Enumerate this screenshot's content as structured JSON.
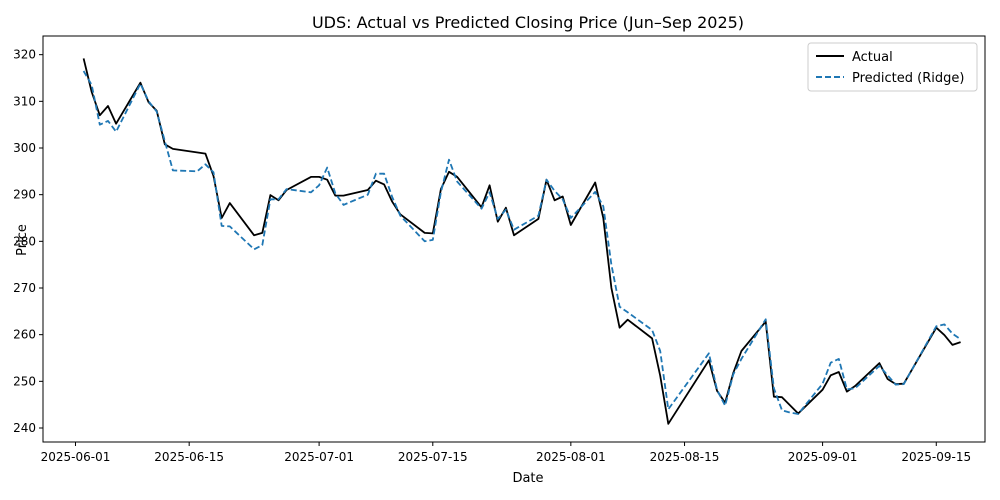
{
  "chart_data": {
    "type": "line",
    "title": "UDS: Actual vs Predicted Closing Price (Jun–Sep 2025)",
    "xlabel": "Date",
    "ylabel": "Price",
    "xlim": [
      "2025-05-28",
      "2025-09-21"
    ],
    "ylim": [
      237,
      324
    ],
    "xticks": [
      "2025-06-01",
      "2025-06-15",
      "2025-07-01",
      "2025-07-15",
      "2025-08-01",
      "2025-08-15",
      "2025-09-01",
      "2025-09-15"
    ],
    "yticks": [
      240,
      250,
      260,
      270,
      280,
      290,
      300,
      310,
      320
    ],
    "legend": {
      "position": "top-right",
      "entries": [
        "Actual",
        "Predicted (Ridge)"
      ]
    },
    "grid": false,
    "series": [
      {
        "name": "Actual",
        "color": "#000000",
        "style": "solid",
        "points": [
          [
            "2025-06-02",
            319.2
          ],
          [
            "2025-06-03",
            312.0
          ],
          [
            "2025-06-04",
            307.0
          ],
          [
            "2025-06-05",
            309.0
          ],
          [
            "2025-06-06",
            305.2
          ],
          [
            "2025-06-09",
            314.0
          ],
          [
            "2025-06-10",
            309.8
          ],
          [
            "2025-06-11",
            308.0
          ],
          [
            "2025-06-12",
            300.8
          ],
          [
            "2025-06-13",
            299.8
          ],
          [
            "2025-06-17",
            298.8
          ],
          [
            "2025-06-18",
            294.0
          ],
          [
            "2025-06-19",
            285.0
          ],
          [
            "2025-06-20",
            288.2
          ],
          [
            "2025-06-23",
            281.3
          ],
          [
            "2025-06-24",
            281.8
          ],
          [
            "2025-06-25",
            289.9
          ],
          [
            "2025-06-26",
            288.8
          ],
          [
            "2025-06-27",
            291.0
          ],
          [
            "2025-06-30",
            293.8
          ],
          [
            "2025-07-01",
            293.8
          ],
          [
            "2025-07-02",
            293.2
          ],
          [
            "2025-07-03",
            289.8
          ],
          [
            "2025-07-04",
            289.8
          ],
          [
            "2025-07-07",
            291.0
          ],
          [
            "2025-07-08",
            293.0
          ],
          [
            "2025-07-09",
            292.2
          ],
          [
            "2025-07-10",
            288.5
          ],
          [
            "2025-07-11",
            285.8
          ],
          [
            "2025-07-14",
            281.8
          ],
          [
            "2025-07-15",
            281.7
          ],
          [
            "2025-07-16",
            291.2
          ],
          [
            "2025-07-17",
            294.9
          ],
          [
            "2025-07-18",
            293.8
          ],
          [
            "2025-07-21",
            287.3
          ],
          [
            "2025-07-22",
            292.0
          ],
          [
            "2025-07-23",
            284.2
          ],
          [
            "2025-07-24",
            287.2
          ],
          [
            "2025-07-25",
            281.3
          ],
          [
            "2025-07-28",
            284.8
          ],
          [
            "2025-07-29",
            293.2
          ],
          [
            "2025-07-30",
            288.8
          ],
          [
            "2025-07-31",
            289.6
          ],
          [
            "2025-08-01",
            283.5
          ],
          [
            "2025-08-04",
            292.6
          ],
          [
            "2025-08-05",
            285.0
          ],
          [
            "2025-08-06",
            270.0
          ],
          [
            "2025-08-07",
            261.5
          ],
          [
            "2025-08-08",
            263.2
          ],
          [
            "2025-08-11",
            259.2
          ],
          [
            "2025-08-12",
            251.2
          ],
          [
            "2025-08-13",
            240.9
          ],
          [
            "2025-08-18",
            254.5
          ],
          [
            "2025-08-19",
            248.0
          ],
          [
            "2025-08-20",
            245.4
          ],
          [
            "2025-08-21",
            251.8
          ],
          [
            "2025-08-22",
            256.5
          ],
          [
            "2025-08-25",
            262.8
          ],
          [
            "2025-08-26",
            246.7
          ],
          [
            "2025-08-27",
            246.6
          ],
          [
            "2025-08-29",
            243.1
          ],
          [
            "2025-09-01",
            248.2
          ],
          [
            "2025-09-02",
            251.3
          ],
          [
            "2025-09-03",
            252.0
          ],
          [
            "2025-09-04",
            247.8
          ],
          [
            "2025-09-05",
            249.0
          ],
          [
            "2025-09-08",
            253.9
          ],
          [
            "2025-09-09",
            250.5
          ],
          [
            "2025-09-10",
            249.4
          ],
          [
            "2025-09-11",
            249.5
          ],
          [
            "2025-09-15",
            261.5
          ],
          [
            "2025-09-16",
            259.9
          ],
          [
            "2025-09-17",
            257.8
          ],
          [
            "2025-09-18",
            258.4
          ]
        ]
      },
      {
        "name": "Predicted (Ridge)",
        "color": "#1f77b4",
        "style": "dashed",
        "points": [
          [
            "2025-06-02",
            316.5
          ],
          [
            "2025-06-03",
            313.5
          ],
          [
            "2025-06-04",
            305.0
          ],
          [
            "2025-06-05",
            305.8
          ],
          [
            "2025-06-06",
            303.5
          ],
          [
            "2025-06-09",
            313.8
          ],
          [
            "2025-06-10",
            310.0
          ],
          [
            "2025-06-11",
            307.8
          ],
          [
            "2025-06-12",
            301.5
          ],
          [
            "2025-06-13",
            295.2
          ],
          [
            "2025-06-16",
            295.0
          ],
          [
            "2025-06-17",
            296.5
          ],
          [
            "2025-06-18",
            294.8
          ],
          [
            "2025-06-19",
            283.3
          ],
          [
            "2025-06-20",
            283.2
          ],
          [
            "2025-06-23",
            278.3
          ],
          [
            "2025-06-24",
            279.2
          ],
          [
            "2025-06-25",
            289.0
          ],
          [
            "2025-06-26",
            289.0
          ],
          [
            "2025-06-27",
            291.2
          ],
          [
            "2025-06-30",
            290.5
          ],
          [
            "2025-07-01",
            292.0
          ],
          [
            "2025-07-02",
            295.8
          ],
          [
            "2025-07-03",
            290.3
          ],
          [
            "2025-07-04",
            287.8
          ],
          [
            "2025-07-07",
            290.0
          ],
          [
            "2025-07-08",
            294.5
          ],
          [
            "2025-07-09",
            294.5
          ],
          [
            "2025-07-10",
            289.5
          ],
          [
            "2025-07-11",
            285.5
          ],
          [
            "2025-07-14",
            280.0
          ],
          [
            "2025-07-15",
            280.3
          ],
          [
            "2025-07-16",
            290.5
          ],
          [
            "2025-07-17",
            297.5
          ],
          [
            "2025-07-18",
            292.8
          ],
          [
            "2025-07-21",
            287.0
          ],
          [
            "2025-07-22",
            290.5
          ],
          [
            "2025-07-23",
            284.8
          ],
          [
            "2025-07-24",
            286.8
          ],
          [
            "2025-07-25",
            282.5
          ],
          [
            "2025-07-28",
            285.5
          ],
          [
            "2025-07-29",
            293.2
          ],
          [
            "2025-07-30",
            290.8
          ],
          [
            "2025-07-31",
            289.0
          ],
          [
            "2025-08-01",
            285.0
          ],
          [
            "2025-08-04",
            290.6
          ],
          [
            "2025-08-05",
            287.5
          ],
          [
            "2025-08-06",
            275.0
          ],
          [
            "2025-08-07",
            266.0
          ],
          [
            "2025-08-08",
            264.8
          ],
          [
            "2025-08-11",
            261.0
          ],
          [
            "2025-08-12",
            256.5
          ],
          [
            "2025-08-13",
            244.0
          ],
          [
            "2025-08-18",
            256.0
          ],
          [
            "2025-08-19",
            248.2
          ],
          [
            "2025-08-20",
            244.8
          ],
          [
            "2025-08-21",
            251.5
          ],
          [
            "2025-08-22",
            254.8
          ],
          [
            "2025-08-25",
            263.3
          ],
          [
            "2025-08-26",
            248.5
          ],
          [
            "2025-08-27",
            243.8
          ],
          [
            "2025-08-28",
            243.3
          ],
          [
            "2025-08-29",
            243.0
          ],
          [
            "2025-09-01",
            249.5
          ],
          [
            "2025-09-02",
            254.0
          ],
          [
            "2025-09-03",
            254.8
          ],
          [
            "2025-09-04",
            248.3
          ],
          [
            "2025-09-05",
            248.5
          ],
          [
            "2025-09-08",
            253.3
          ],
          [
            "2025-09-09",
            251.3
          ],
          [
            "2025-09-10",
            249.3
          ],
          [
            "2025-09-11",
            249.4
          ],
          [
            "2025-09-15",
            261.8
          ],
          [
            "2025-09-16",
            262.2
          ],
          [
            "2025-09-17",
            260.2
          ],
          [
            "2025-09-18",
            259.0
          ]
        ]
      }
    ]
  }
}
